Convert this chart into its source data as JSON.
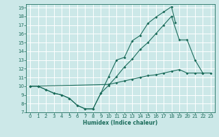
{
  "xlabel": "Humidex (Indice chaleur)",
  "bg_color": "#cce8e8",
  "grid_color": "#ffffff",
  "line_color": "#1a6b5a",
  "xlim": [
    -0.5,
    23.5
  ],
  "ylim": [
    7,
    19.4
  ],
  "xticks": [
    0,
    1,
    2,
    3,
    4,
    5,
    6,
    7,
    8,
    9,
    10,
    11,
    12,
    13,
    14,
    15,
    16,
    17,
    18,
    19,
    20,
    21,
    22,
    23
  ],
  "yticks": [
    7,
    8,
    9,
    10,
    11,
    12,
    13,
    14,
    15,
    16,
    17,
    18,
    19
  ],
  "line1_x": [
    0,
    1,
    2,
    3,
    4,
    5,
    6,
    7,
    8,
    9,
    10,
    11,
    12,
    13,
    14,
    15,
    16,
    17,
    18,
    18.5
  ],
  "line1_y": [
    10,
    10,
    9.6,
    9.2,
    9.0,
    8.6,
    7.8,
    7.4,
    7.4,
    9.2,
    11.1,
    13.0,
    13.3,
    15.2,
    15.8,
    17.2,
    17.9,
    18.5,
    19.1,
    17.3
  ],
  "line2_x": [
    0,
    1,
    2,
    3,
    4,
    5,
    6,
    7,
    8,
    9,
    10,
    11,
    12,
    13,
    14,
    15,
    16,
    17,
    18,
    19,
    20,
    21,
    22
  ],
  "line2_y": [
    10,
    10,
    9.6,
    9.2,
    9.0,
    8.6,
    7.8,
    7.4,
    7.4,
    9.2,
    10.1,
    11.1,
    12.2,
    13.1,
    14.2,
    15.0,
    16.0,
    17.0,
    18.0,
    15.3,
    15.3,
    13.0,
    11.5
  ],
  "line3_x": [
    0,
    1,
    10,
    11,
    12,
    13,
    14,
    15,
    16,
    17,
    18,
    19,
    20,
    21,
    22,
    23
  ],
  "line3_y": [
    10,
    10,
    10.2,
    10.4,
    10.6,
    10.8,
    11.0,
    11.2,
    11.3,
    11.5,
    11.7,
    11.9,
    11.5,
    11.5,
    11.5,
    11.5
  ]
}
